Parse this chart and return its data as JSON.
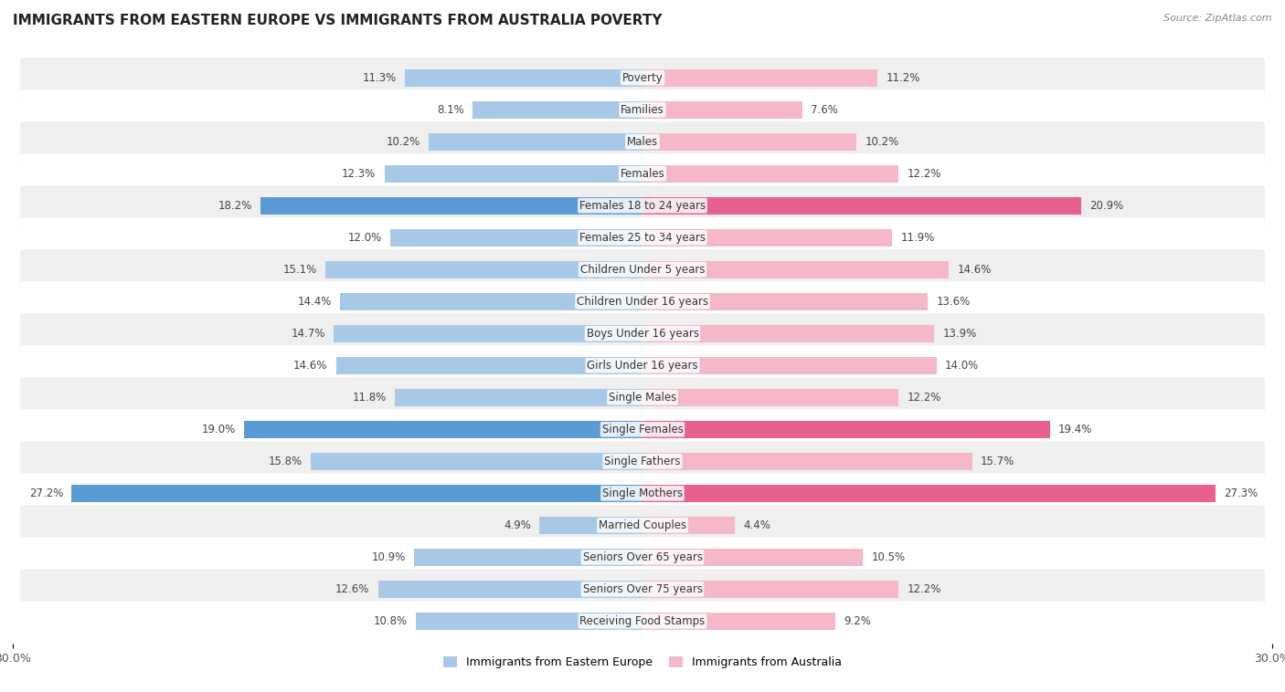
{
  "title": "IMMIGRANTS FROM EASTERN EUROPE VS IMMIGRANTS FROM AUSTRALIA POVERTY",
  "source": "Source: ZipAtlas.com",
  "categories": [
    "Poverty",
    "Families",
    "Males",
    "Females",
    "Females 18 to 24 years",
    "Females 25 to 34 years",
    "Children Under 5 years",
    "Children Under 16 years",
    "Boys Under 16 years",
    "Girls Under 16 years",
    "Single Males",
    "Single Females",
    "Single Fathers",
    "Single Mothers",
    "Married Couples",
    "Seniors Over 65 years",
    "Seniors Over 75 years",
    "Receiving Food Stamps"
  ],
  "eastern_europe": [
    11.3,
    8.1,
    10.2,
    12.3,
    18.2,
    12.0,
    15.1,
    14.4,
    14.7,
    14.6,
    11.8,
    19.0,
    15.8,
    27.2,
    4.9,
    10.9,
    12.6,
    10.8
  ],
  "australia": [
    11.2,
    7.6,
    10.2,
    12.2,
    20.9,
    11.9,
    14.6,
    13.6,
    13.9,
    14.0,
    12.2,
    19.4,
    15.7,
    27.3,
    4.4,
    10.5,
    12.2,
    9.2
  ],
  "color_eastern": "#a8c8e8",
  "color_australia": "#f4b8c8",
  "highlight_rows": [
    4,
    11,
    13
  ],
  "highlight_color_eastern": "#5b9bd5",
  "highlight_color_australia": "#e86090",
  "axis_max": 30.0,
  "background_color": "#ffffff",
  "row_bg_even": "#efefef",
  "row_bg_odd": "#ffffff",
  "legend_eastern": "Immigrants from Eastern Europe",
  "legend_australia": "Immigrants from Australia",
  "bar_height": 0.55
}
